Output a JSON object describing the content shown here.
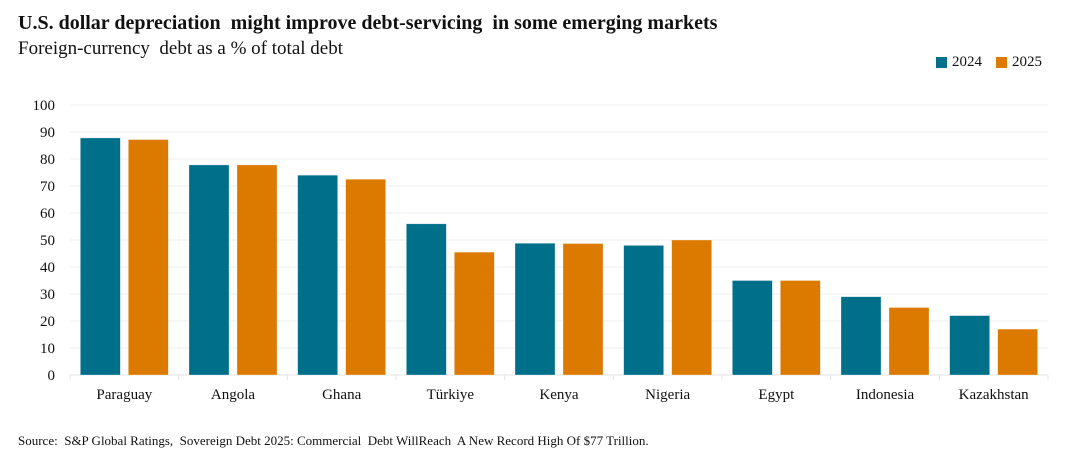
{
  "header": {
    "title": "U.S. dollar depreciation  might improve debt-servicing  in some emerging markets",
    "subtitle": "Foreign-currency  debt as a % of total debt"
  },
  "footer": {
    "source": "Source:  S&P Global Ratings,  Sovereign Debt 2025: Commercial  Debt WillReach  A New Record High Of $77 Trillion."
  },
  "colors": {
    "series_2024": "#006F8A",
    "series_2025": "#DC7A00",
    "grid": "#EDEDED"
  },
  "chart_data": {
    "type": "bar",
    "title": "U.S. dollar depreciation might improve debt-servicing in some emerging markets",
    "subtitle": "Foreign-currency debt as a % of total debt",
    "xlabel": "",
    "ylabel": "",
    "ylim": [
      0,
      100
    ],
    "yticks": [
      0,
      10,
      20,
      30,
      40,
      50,
      60,
      70,
      80,
      90,
      100
    ],
    "grid": true,
    "legend_position": "top-right",
    "categories": [
      "Paraguay",
      "Angola",
      "Ghana",
      "Türkiye",
      "Kenya",
      "Nigeria",
      "Egypt",
      "Indonesia",
      "Kazakhstan"
    ],
    "series": [
      {
        "name": "2024",
        "color": "#006F8A",
        "values": [
          87.8,
          77.8,
          74,
          56,
          48.8,
          48,
          35,
          29,
          22
        ]
      },
      {
        "name": "2025",
        "color": "#DC7A00",
        "values": [
          87.2,
          77.8,
          72.5,
          45.5,
          48.7,
          50,
          35,
          25,
          17
        ]
      }
    ]
  }
}
